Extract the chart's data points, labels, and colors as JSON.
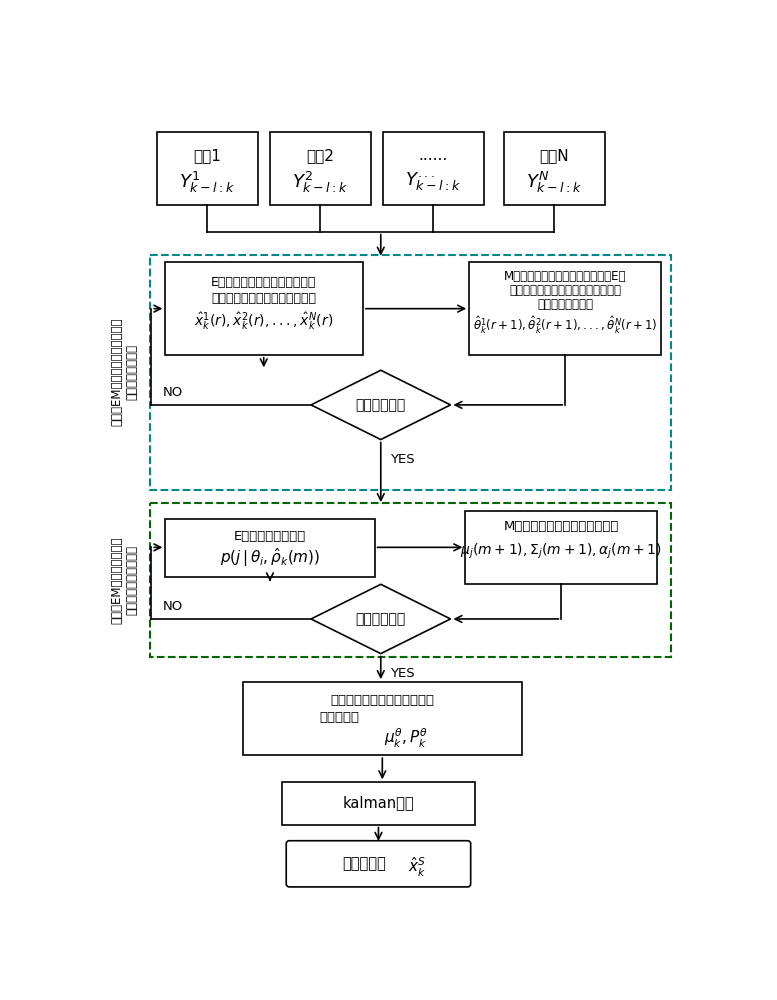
{
  "bg_color": "#ffffff",
  "radar_labels": [
    "雳其1",
    "雳其2",
    "......",
    "雳其N"
  ],
  "radar_math": [
    "$Y^{1}_{k-l:k}$",
    "$Y^{2}_{k-l:k}$",
    "$Y^{...}_{k-l:k}$",
    "$Y^{N}_{k-l:k}$"
  ],
  "estep1_line1": "E步：根据各雳达的独立量测，",
  "estep1_line2": "各滤波器并行地对状态进行估计",
  "estep1_math": "$\\hat{x}^{1}_{k}(r), \\hat{x}^{2}_{k}(r),...,\\hat{x}^{N}_{k}(r)$",
  "mstep1_line1": "M步：根据各雳达的独立量测以及E步",
  "mstep1_line2": "独立的状态估计値，各滤波器并行地",
  "mstep1_line3": "辨识加性未知干扰",
  "mstep1_math": "$\\hat{\\theta}^{1}_{k}(r+1), \\hat{\\theta}^{2}_{k}(r+1),...,\\hat{\\theta}^{N}_{k}(r+1)$",
  "dia1_text": "迭代终止条件",
  "estep2_line1": "E步：计算似然函数",
  "estep2_math": "$p(j\\,|\\,\\theta_i, \\hat{\\rho}_k(m))$",
  "mstep2_line1": "M步：更新混合高斯分项参数値",
  "mstep2_math": "$\\mu_j(m+1), \\Sigma_j(m+1), \\alpha_j(m+1)$",
  "dia2_text": "迭代终止条件",
  "fit_line1": "拟合未知干扰辨识値总体的均",
  "fit_line2": "値和协方差",
  "fit_math": "$\\mu^{\\theta}_{k}, P^{\\theta}_{k}$",
  "kalman_text": "kalman滤波",
  "final_line1": "状态估计値",
  "final_math": "$\\hat{x}^{S}_{k}$",
  "side1_chars": [
    "第",
    "一",
    "层",
    "E",
    "M",
    "：",
    "联",
    "合",
    "状",
    "态",
    "估",
    "计",
    "与",
    "量",
    "测",
    "加",
    "性",
    "未",
    "知",
    "干",
    "扰",
    "辨",
    "识"
  ],
  "side2_chars": [
    "第",
    "二",
    "层",
    "E",
    "M",
    "：",
    "混",
    "合",
    "高",
    "斯",
    "拟",
    "合",
    "未",
    "知",
    "干",
    "扰",
    "均",
    "值",
    "和",
    "协",
    "方",
    "差"
  ],
  "side1_text": "第一层EM：联合状态估计与量测\n加性未知干扰辨识",
  "side2_text": "第二层EM：混合高斯拟合\n未知干扰均值和协方差",
  "dash1_color": "#008888",
  "dash2_color": "#006600",
  "no_text": "NO",
  "yes_text": "YES"
}
